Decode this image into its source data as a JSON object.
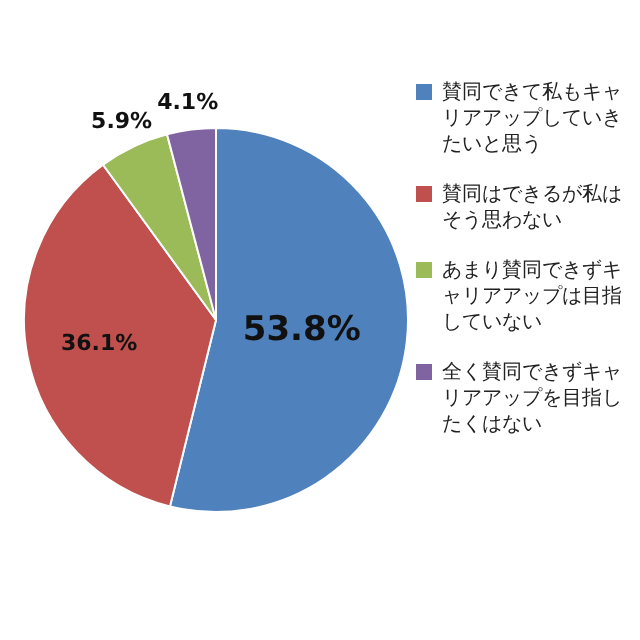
{
  "chart_data": {
    "type": "pie",
    "categories": [
      "賛同できて私もキャリアアップしていきたいと思う",
      "賛同はできるが私はそう思わない",
      "あまり賛同できずキャリアアップは目指していない",
      "全く賛同できずキャリアアップを目指したくはない"
    ],
    "values": [
      53.8,
      36.1,
      5.9,
      4.1
    ],
    "colors": [
      "#4f81bd",
      "#c0504d",
      "#9bbb59",
      "#8064a2"
    ],
    "value_labels": [
      "53.8%",
      "36.1%",
      "5.9%",
      "4.1%"
    ],
    "legend": "right"
  }
}
